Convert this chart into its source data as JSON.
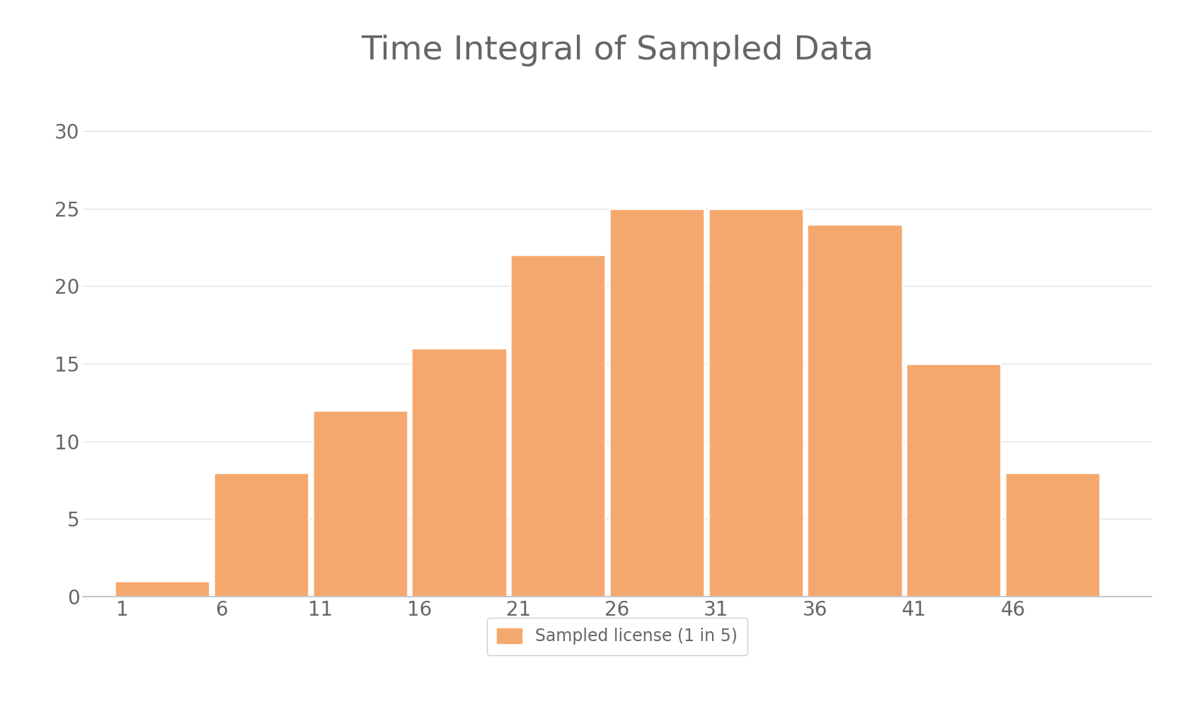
{
  "title": "Time Integral of Sampled Data",
  "bar_centers": [
    3,
    8,
    13,
    18,
    23,
    28,
    33,
    38,
    43,
    48
  ],
  "bar_heights": [
    1,
    8,
    12,
    16,
    22,
    25,
    25,
    24,
    15,
    8
  ],
  "bar_width": 4.8,
  "bar_color": "#F5A86E",
  "bar_edgecolor": "#FFFFFF",
  "xtick_positions": [
    1,
    6,
    11,
    16,
    21,
    26,
    31,
    36,
    41,
    46
  ],
  "xtick_labels": [
    "1",
    "6",
    "11",
    "16",
    "21",
    "26",
    "31",
    "36",
    "41",
    "46"
  ],
  "ytick_values": [
    0,
    5,
    10,
    15,
    20,
    25,
    30
  ],
  "ylim": [
    0,
    33
  ],
  "xlim": [
    -1,
    53
  ],
  "legend_label": "Sampled license (1 in 5)",
  "background_color": "#FFFFFF",
  "title_fontsize": 34,
  "tick_fontsize": 20,
  "legend_fontsize": 17,
  "grid_color": "#D8D8D8",
  "tick_color": "#666666",
  "title_color": "#666666"
}
